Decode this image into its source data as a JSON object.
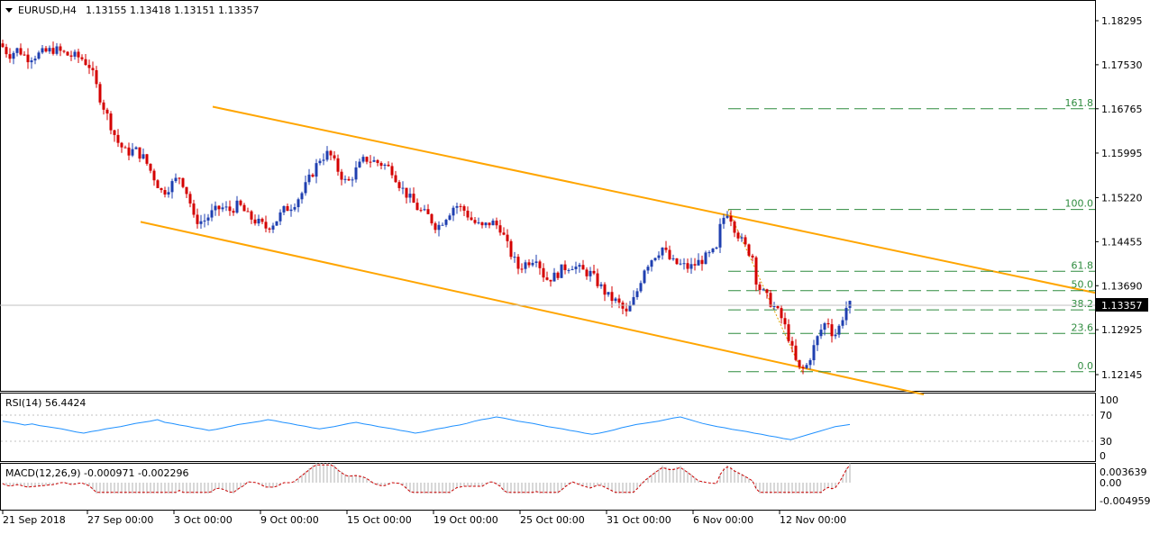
{
  "header": {
    "symbol": "EURUSD,H4",
    "ohlc": "1.13155 1.13418 1.13151 1.13357"
  },
  "chart_data": {
    "type": "candlestick",
    "symbol": "EURUSD",
    "timeframe": "H4",
    "current_price": "1.13357",
    "ylim": [
      1.2186,
      1.1852
    ],
    "y_ticks": [
      "1.18295",
      "1.17530",
      "1.16765",
      "1.15995",
      "1.15220",
      "1.14455",
      "1.13690",
      "1.12925",
      "1.12145"
    ],
    "x_ticks": [
      "21 Sep 2018",
      "27 Sep 00:00",
      "3 Oct 00:00",
      "9 Oct 00:00",
      "15 Oct 00:00",
      "19 Oct 00:00",
      "25 Oct 00:00",
      "31 Oct 00:00",
      "6 Nov 00:00",
      "12 Nov 00:00"
    ],
    "price_path": [
      [
        0,
        1.179
      ],
      [
        10,
        1.177
      ],
      [
        20,
        1.178
      ],
      [
        30,
        1.1765
      ],
      [
        45,
        1.1772
      ],
      [
        60,
        1.178
      ],
      [
        75,
        1.177
      ],
      [
        90,
        1.1765
      ],
      [
        100,
        1.175
      ],
      [
        110,
        1.17
      ],
      [
        120,
        1.166
      ],
      [
        130,
        1.162
      ],
      [
        140,
        1.16
      ],
      [
        150,
        1.1605
      ],
      [
        160,
        1.159
      ],
      [
        170,
        1.156
      ],
      [
        180,
        1.153
      ],
      [
        190,
        1.1545
      ],
      [
        200,
        1.156
      ],
      [
        210,
        1.152
      ],
      [
        215,
        1.1485
      ],
      [
        225,
        1.148
      ],
      [
        235,
        1.1495
      ],
      [
        245,
        1.1505
      ],
      [
        255,
        1.15
      ],
      [
        265,
        1.151
      ],
      [
        275,
        1.149
      ],
      [
        285,
        1.148
      ],
      [
        295,
        1.147
      ],
      [
        305,
        1.148
      ],
      [
        315,
        1.15
      ],
      [
        325,
        1.151
      ],
      [
        335,
        1.153
      ],
      [
        345,
        1.156
      ],
      [
        355,
        1.159
      ],
      [
        365,
        1.16
      ],
      [
        375,
        1.157
      ],
      [
        385,
        1.1545
      ],
      [
        395,
        1.157
      ],
      [
        405,
        1.159
      ],
      [
        415,
        1.1585
      ],
      [
        425,
        1.158
      ],
      [
        435,
        1.157
      ],
      [
        445,
        1.154
      ],
      [
        455,
        1.152
      ],
      [
        465,
        1.15
      ],
      [
        475,
        1.149
      ],
      [
        485,
        1.147
      ],
      [
        495,
        1.149
      ],
      [
        505,
        1.151
      ],
      [
        515,
        1.15
      ],
      [
        525,
        1.148
      ],
      [
        535,
        1.147
      ],
      [
        545,
        1.148
      ],
      [
        555,
        1.147
      ],
      [
        565,
        1.143
      ],
      [
        575,
        1.14
      ],
      [
        585,
        1.141
      ],
      [
        595,
        1.142
      ],
      [
        605,
        1.138
      ],
      [
        615,
        1.1385
      ],
      [
        625,
        1.14
      ],
      [
        635,
        1.1405
      ],
      [
        645,
        1.1395
      ],
      [
        655,
        1.139
      ],
      [
        665,
        1.137
      ],
      [
        675,
        1.135
      ],
      [
        685,
        1.134
      ],
      [
        695,
        1.132
      ],
      [
        705,
        1.135
      ],
      [
        715,
        1.14
      ],
      [
        725,
        1.142
      ],
      [
        735,
        1.1435
      ],
      [
        745,
        1.141
      ],
      [
        755,
        1.1405
      ],
      [
        765,
        1.14
      ],
      [
        775,
        1.141
      ],
      [
        785,
        1.142
      ],
      [
        795,
        1.143
      ],
      [
        800,
        1.148
      ],
      [
        808,
        1.15
      ],
      [
        815,
        1.147
      ],
      [
        825,
        1.144
      ],
      [
        835,
        1.142
      ],
      [
        840,
        1.137
      ],
      [
        850,
        1.135
      ],
      [
        860,
        1.133
      ],
      [
        868,
        1.131
      ],
      [
        875,
        1.128
      ],
      [
        882,
        1.124
      ],
      [
        888,
        1.122
      ],
      [
        895,
        1.123
      ],
      [
        900,
        1.125
      ],
      [
        910,
        1.129
      ],
      [
        918,
        1.131
      ],
      [
        925,
        1.128
      ],
      [
        932,
        1.13
      ],
      [
        938,
        1.133
      ],
      [
        944,
        1.1336
      ]
    ],
    "fib_levels": [
      {
        "label": "161.8",
        "price": 1.16765
      },
      {
        "label": "100.0",
        "price": 1.15015
      },
      {
        "label": "61.8",
        "price": 1.1394
      },
      {
        "label": "50.0",
        "price": 1.13605
      },
      {
        "label": "38.2",
        "price": 1.1327
      },
      {
        "label": "23.6",
        "price": 1.1286
      },
      {
        "label": "0.0",
        "price": 1.12195
      }
    ],
    "channel": {
      "upper": [
        [
          236,
          1.168
        ],
        [
          1215,
          1.13567
        ]
      ],
      "lower": [
        [
          156,
          1.148
        ],
        [
          1025,
          1.118
        ]
      ]
    },
    "rsi": {
      "label": "RSI(14) 56.4424",
      "levels": [
        "100",
        "70",
        "30",
        "0"
      ],
      "values": [
        62,
        60,
        58,
        55,
        57,
        54,
        52,
        50,
        48,
        45,
        42,
        40,
        43,
        45,
        48,
        50,
        52,
        55,
        58,
        60,
        62,
        65,
        60,
        58,
        55,
        53,
        50,
        48,
        45,
        47,
        50,
        53,
        56,
        58,
        60,
        62,
        65,
        63,
        60,
        58,
        55,
        53,
        50,
        48,
        50,
        52,
        55,
        58,
        60,
        57,
        55,
        52,
        50,
        48,
        45,
        43,
        40,
        42,
        45,
        48,
        50,
        53,
        55,
        58,
        62,
        65,
        67,
        70,
        68,
        65,
        62,
        60,
        58,
        55,
        52,
        50,
        48,
        45,
        43,
        40,
        38,
        40,
        43,
        46,
        50,
        53,
        56,
        58,
        60,
        62,
        65,
        68,
        70,
        66,
        62,
        58,
        55,
        52,
        50,
        47,
        45,
        43,
        40,
        38,
        35,
        33,
        30,
        28,
        32,
        36,
        40,
        44,
        48,
        52,
        54,
        56
      ]
    },
    "macd": {
      "label": "MACD(12,26,9) -0.000971 -0.002296",
      "ticks": [
        "0.003639",
        "0.00",
        "-0.004959"
      ]
    }
  }
}
